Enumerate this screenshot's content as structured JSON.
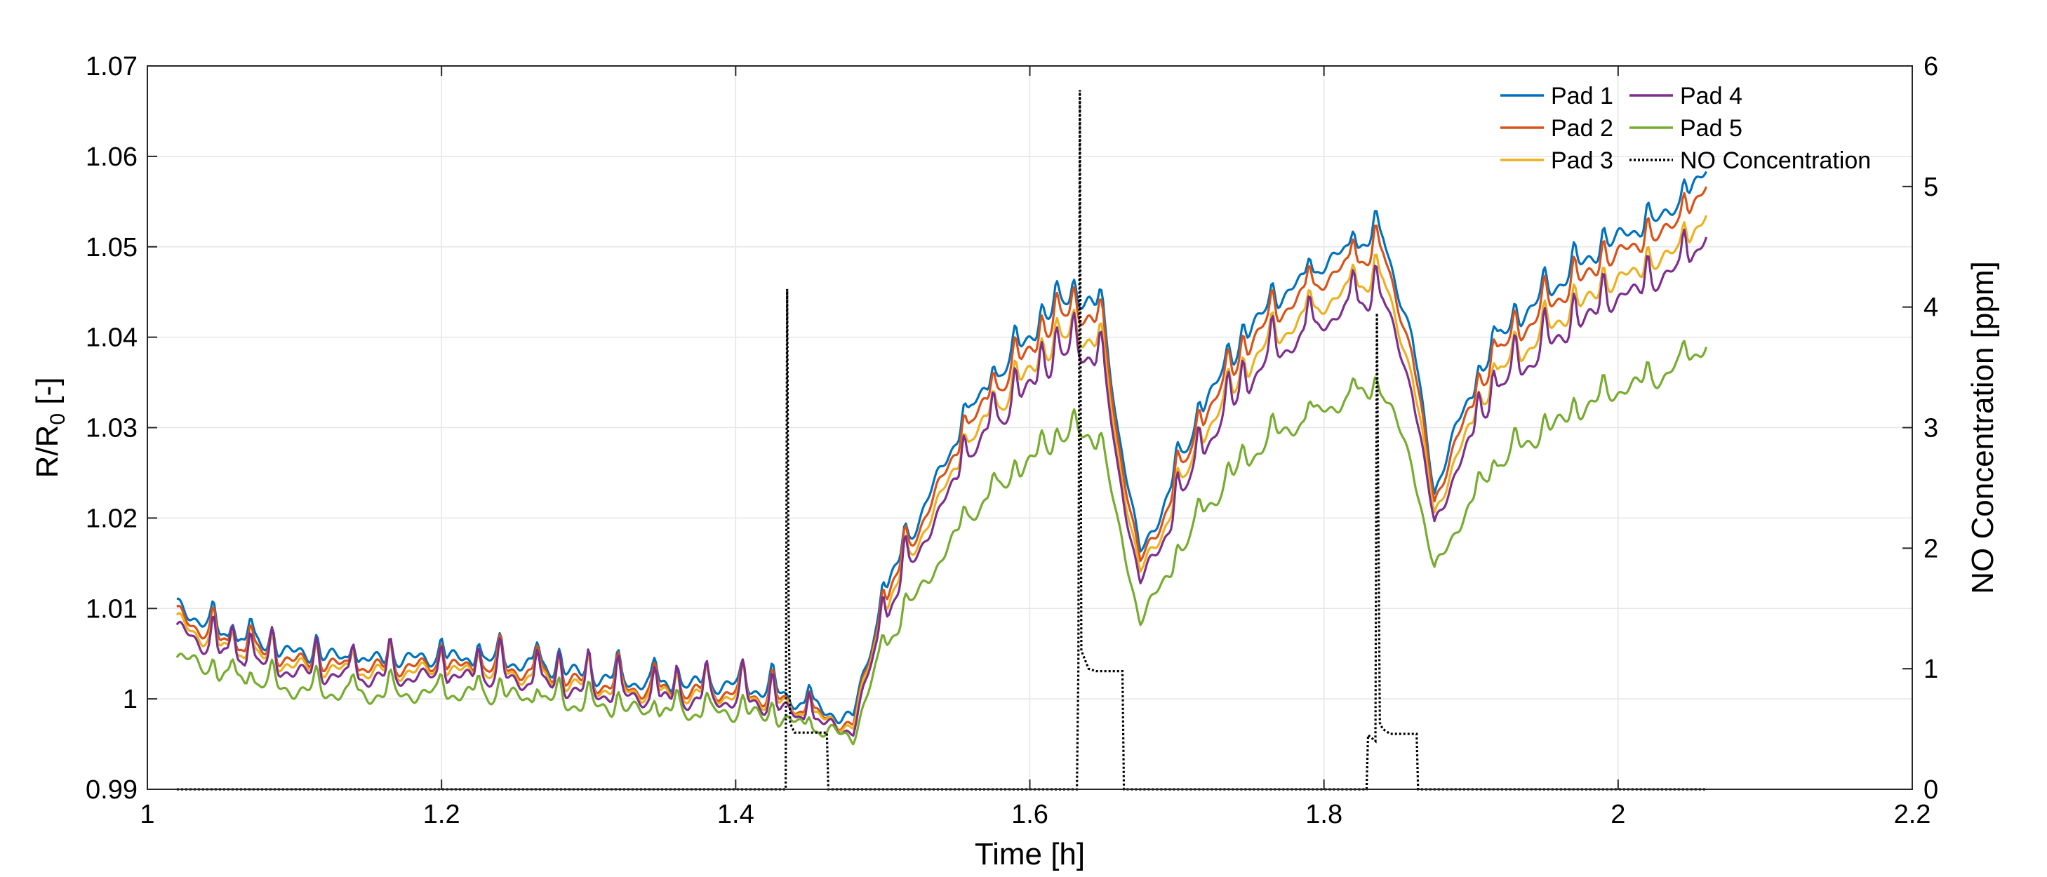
{
  "chart_data": {
    "type": "line",
    "title": "",
    "xlabel": "Time [h]",
    "ylabel_left_main": "R/R",
    "ylabel_left_sub": "0",
    "ylabel_left_suffix": " [-]",
    "ylabel_right": "NO Concentration [ppm]",
    "xlim": [
      1,
      2.2
    ],
    "ylim_left": [
      0.99,
      1.07
    ],
    "ylim_right": [
      0,
      6
    ],
    "x_ticks": [
      1,
      1.2,
      1.4,
      1.6,
      1.8,
      2,
      2.2
    ],
    "x_tick_labels": [
      "1",
      "1.2",
      "1.4",
      "1.6",
      "1.8",
      "2",
      "2.2"
    ],
    "y_left_ticks": [
      0.99,
      1.0,
      1.01,
      1.02,
      1.03,
      1.04,
      1.05,
      1.06,
      1.07
    ],
    "y_left_tick_labels": [
      "0.99",
      "1",
      "1.01",
      "1.02",
      "1.03",
      "1.04",
      "1.05",
      "1.06",
      "1.07"
    ],
    "y_right_ticks": [
      0,
      1,
      2,
      3,
      4,
      5,
      6
    ],
    "y_right_tick_labels": [
      "0",
      "1",
      "2",
      "3",
      "4",
      "5",
      "6"
    ],
    "grid": true,
    "legend_position": "top-right",
    "base": {
      "x": [
        1.02,
        1.05,
        1.1,
        1.15,
        1.2,
        1.25,
        1.3,
        1.35,
        1.4,
        1.43,
        1.46,
        1.48,
        1.5,
        1.53,
        1.56,
        1.6,
        1.625,
        1.64,
        1.65,
        1.66,
        1.675,
        1.69,
        1.72,
        1.76,
        1.8,
        1.82,
        1.84,
        1.86,
        1.875,
        1.89,
        1.92,
        1.96,
        2.0,
        2.03,
        2.06
      ],
      "y": [
        1.0105,
        1.007,
        1.005,
        1.0042,
        1.0045,
        1.004,
        1.0025,
        1.0015,
        1.0015,
        1.0005,
        0.9985,
        0.998,
        1.011,
        1.022,
        1.032,
        1.04,
        1.044,
        1.044,
        1.042,
        1.03,
        1.016,
        1.021,
        1.033,
        1.043,
        1.048,
        1.05,
        1.051,
        1.04,
        1.023,
        1.03,
        1.04,
        1.046,
        1.051,
        1.053,
        1.058
      ]
    },
    "spike_x": [
      1.045,
      1.058,
      1.07,
      1.085,
      1.115,
      1.14,
      1.165,
      1.2,
      1.225,
      1.24,
      1.265,
      1.28,
      1.3,
      1.32,
      1.345,
      1.36,
      1.38,
      1.405,
      1.425,
      1.45,
      1.5,
      1.515,
      1.555,
      1.575,
      1.59,
      1.608,
      1.618,
      1.63,
      1.648,
      1.7,
      1.715,
      1.735,
      1.745,
      1.765,
      1.79,
      1.82,
      1.835,
      1.905,
      1.915,
      1.93,
      1.95,
      1.97,
      1.99,
      2.02,
      2.045
    ],
    "series": [
      {
        "name": "Pad 1",
        "color": "#0072BD",
        "offset": 0.0,
        "scale": 1.0,
        "spike": 0.0025
      },
      {
        "name": "Pad 2",
        "color": "#D95319",
        "offset": -0.0008,
        "scale": 0.98,
        "spike": 0.003
      },
      {
        "name": "Pad 3",
        "color": "#EDB120",
        "offset": -0.0012,
        "scale": 0.93,
        "spike": 0.0028
      },
      {
        "name": "Pad 4",
        "color": "#7E2F8E",
        "offset": -0.0018,
        "scale": 0.9,
        "spike": 0.004
      },
      {
        "name": "Pad 5",
        "color": "#77AC30",
        "offset": -0.0032,
        "scale": 0.72,
        "spike": 0.002
      }
    ],
    "no_concentration": {
      "name": "NO Concentration",
      "color": "#000000",
      "x": [
        1.02,
        1.434,
        1.435,
        1.436,
        1.437,
        1.44,
        1.462,
        1.463,
        1.632,
        1.633,
        1.634,
        1.635,
        1.64,
        1.645,
        1.663,
        1.664,
        1.829,
        1.83,
        1.835,
        1.836,
        1.838,
        1.84,
        1.845,
        1.863,
        1.864,
        2.06
      ],
      "y": [
        0,
        0,
        4.15,
        1.5,
        0.55,
        0.47,
        0.47,
        0,
        0,
        1.0,
        5.8,
        1.15,
        1.0,
        0.98,
        0.98,
        0,
        0,
        0.45,
        0.4,
        3.95,
        0.55,
        0.5,
        0.46,
        0.46,
        0,
        0
      ]
    }
  }
}
